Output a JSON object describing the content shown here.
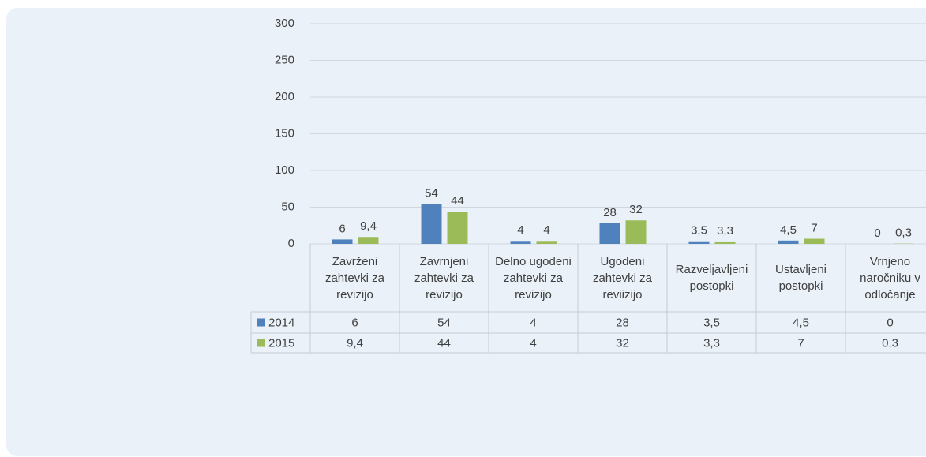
{
  "chart_data": {
    "type": "bar",
    "categories": [
      "Zavrženi zahtevki za revizijo",
      "Zavrnjeni zahtevki za revizijo",
      "Delno ugodeni zahtevki za revizijo",
      "Ugodeni zahtevki za reviizijo",
      "Razveljavljeni postopki",
      "Ustavljeni postopki",
      "Vrnjeno naročniku v odločanje"
    ],
    "series": [
      {
        "name": "2014",
        "color": "#4f81bd",
        "values": [
          6,
          54,
          4,
          28,
          3.5,
          4.5,
          0
        ],
        "value_labels": [
          "6",
          "54",
          "4",
          "28",
          "3,5",
          "4,5",
          "0"
        ]
      },
      {
        "name": "2015",
        "color": "#9bbb59",
        "values": [
          9.4,
          44,
          4,
          32,
          3.3,
          7,
          0.3
        ],
        "value_labels": [
          "9,4",
          "44",
          "4",
          "32",
          "3,3",
          "7",
          "0,3"
        ]
      }
    ],
    "ylim": [
      0,
      300
    ],
    "yticks": [
      0,
      50,
      100,
      150,
      200,
      250,
      300
    ],
    "grid": true
  }
}
